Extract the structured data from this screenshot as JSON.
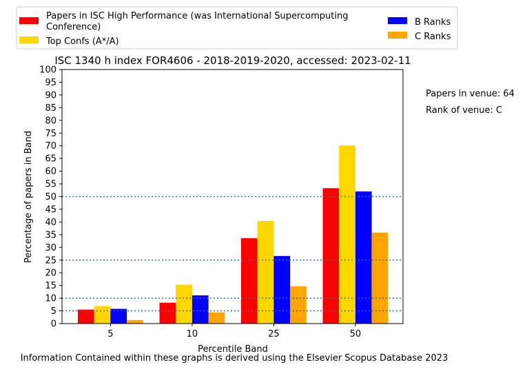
{
  "chart_data": {
    "type": "bar",
    "title": "ISC 1340 h index FOR4606 - 2018-2019-2020, accessed: 2023-02-11",
    "xlabel": "Percentile Band",
    "ylabel": "Percentage of papers in Band",
    "categories": [
      "5",
      "10",
      "25",
      "50"
    ],
    "ylim": [
      0,
      100
    ],
    "yticks": [
      0,
      5,
      10,
      15,
      20,
      25,
      30,
      35,
      40,
      45,
      50,
      55,
      60,
      65,
      70,
      75,
      80,
      85,
      90,
      95,
      100
    ],
    "reference_lines": [
      5,
      10,
      25,
      50
    ],
    "legend_placement": "top",
    "series": [
      {
        "name": "Papers in ISC High Performance (was International Supercomputing Conference)",
        "color": "#ff0000",
        "values": [
          5.5,
          8.2,
          33.6,
          53.3
        ]
      },
      {
        "name": "Top Confs (A*/A)",
        "color": "#ffd700",
        "values": [
          6.9,
          15.3,
          40.4,
          70.1
        ]
      },
      {
        "name": "B Ranks",
        "color": "#0000ff",
        "values": [
          5.8,
          11.1,
          26.6,
          52.0
        ]
      },
      {
        "name": "C Ranks",
        "color": "#ffa500",
        "values": [
          1.4,
          4.4,
          14.7,
          35.8
        ]
      }
    ]
  },
  "legend": {
    "red_line1": "Papers in ISC High Performance (was International Supercomputing",
    "red_line2": "Conference)",
    "yellow": "Top Confs (A*/A)",
    "blue": "B Ranks",
    "orange": "C Ranks"
  },
  "side_info": {
    "papers": "Papers in venue: 64",
    "rank": "Rank of venue: C"
  },
  "footer": "Information Contained within these graphs is derived using the Elsevier Scopus Database 2023"
}
